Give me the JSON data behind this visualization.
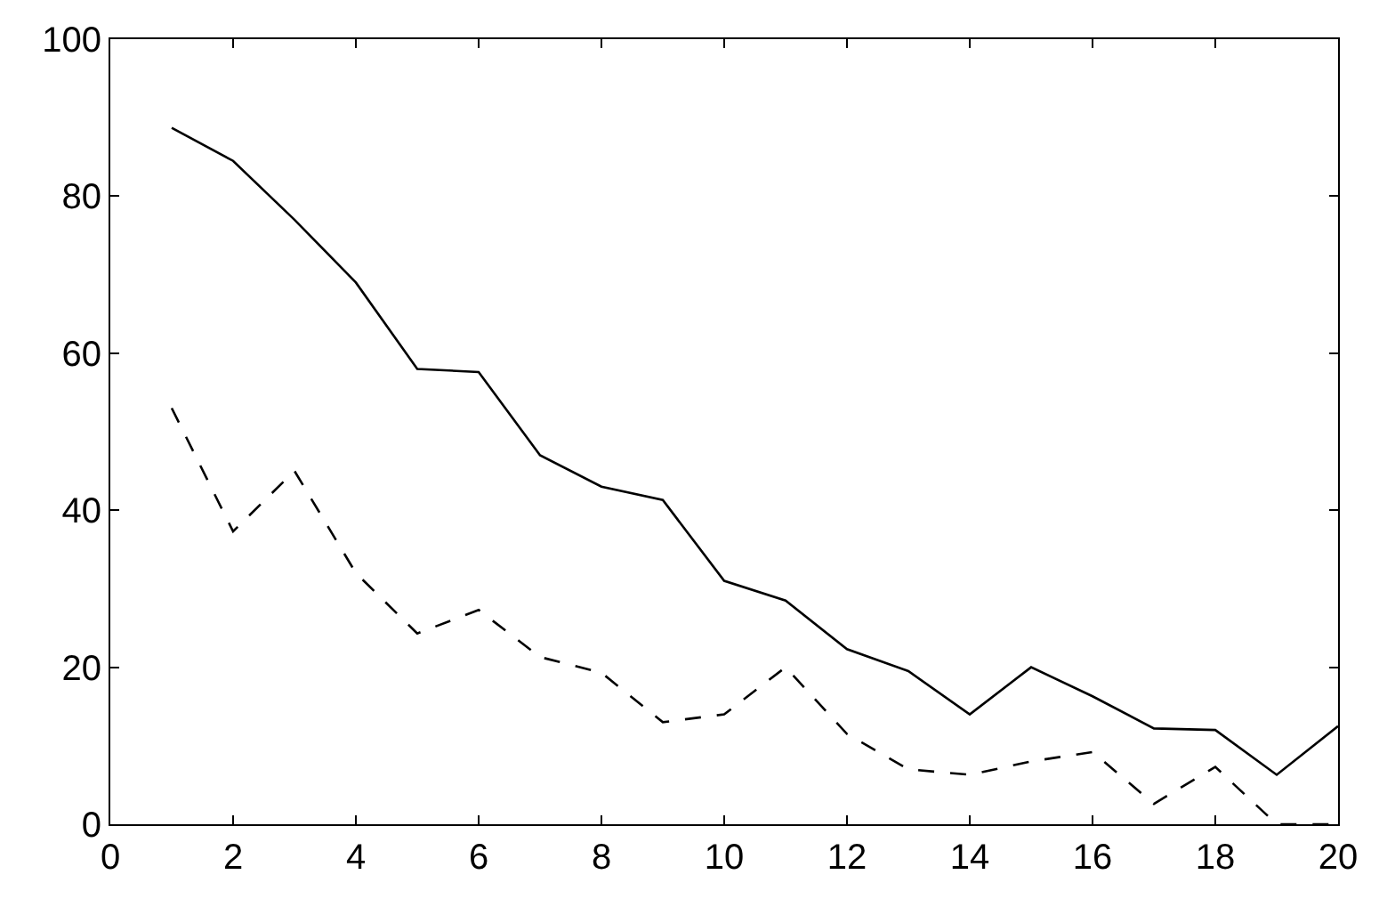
{
  "chart_data": {
    "type": "line",
    "x": [
      1,
      2,
      3,
      4,
      5,
      6,
      7,
      8,
      9,
      10,
      11,
      12,
      13,
      14,
      15,
      16,
      17,
      18,
      19,
      20
    ],
    "series": [
      {
        "color": "#000000",
        "line_style": "solid",
        "values": [
          88.7,
          84.5,
          77,
          69,
          58,
          57.6,
          47,
          43,
          41.3,
          31,
          28.5,
          22.3,
          19.5,
          14,
          20,
          16.3,
          12.2,
          12,
          6.3,
          12.5
        ]
      },
      {
        "color": "#000000",
        "line_style": "dashed",
        "values": [
          53,
          37.3,
          45,
          32,
          24.3,
          27.3,
          21.3,
          19.3,
          13,
          14,
          20,
          11.5,
          7,
          6.3,
          8,
          9.2,
          2.6,
          7.3,
          0,
          0
        ]
      }
    ],
    "xlim": [
      0,
      20
    ],
    "xticks": [
      0,
      2,
      4,
      6,
      8,
      10,
      12,
      14,
      16,
      18,
      20
    ],
    "ylim": [
      0,
      100
    ],
    "yticks": [
      0,
      20,
      40,
      60,
      80,
      100
    ],
    "grid": false,
    "marker": "none"
  }
}
